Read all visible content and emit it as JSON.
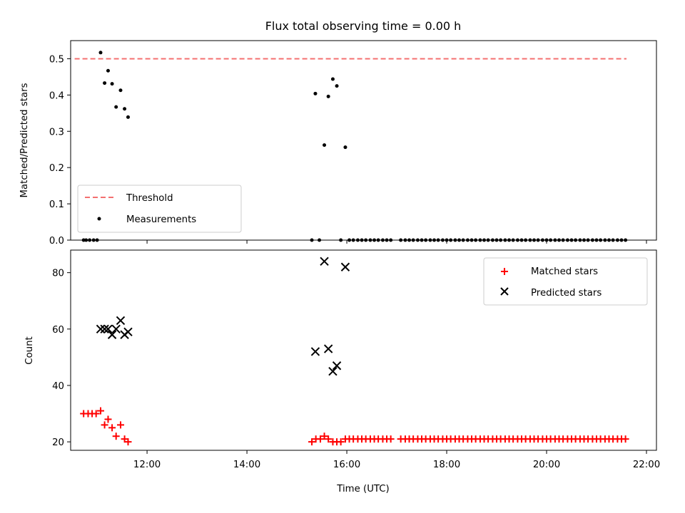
{
  "title": "Flux total observing time = 0.00 h",
  "chart_data": [
    {
      "type": "scatter",
      "ylabel": "Matched/Predicted stars",
      "xlim": [
        10.47,
        22.2
      ],
      "ylim": [
        0.0,
        0.55
      ],
      "ytick_labels": [
        "0.0",
        "0.1",
        "0.2",
        "0.3",
        "0.4",
        "0.5"
      ],
      "yticks": [
        0.0,
        0.1,
        0.2,
        0.3,
        0.4,
        0.5
      ],
      "xticks": [
        12,
        14,
        16,
        18,
        20,
        22
      ],
      "legend": {
        "placement": "lower-left"
      },
      "threshold": {
        "name": "Threshold",
        "value": 0.5,
        "x_range": [
          10.55,
          21.6
        ],
        "color": "#f47070"
      },
      "measurements": {
        "name": "Measurements",
        "color": "#000000",
        "x": [
          10.73,
          10.78,
          10.85,
          10.93,
          11.0,
          11.07,
          11.15,
          11.22,
          11.3,
          11.38,
          11.47,
          11.55,
          11.62,
          15.3,
          15.37,
          15.45,
          15.55,
          15.63,
          15.72,
          15.8,
          15.88,
          15.97,
          16.05,
          16.13,
          16.22,
          16.3,
          16.38,
          16.47,
          16.55,
          16.63,
          16.72,
          16.8,
          16.88,
          17.08,
          17.17,
          17.25,
          17.33,
          17.42,
          17.5,
          17.58,
          17.67,
          17.75,
          17.83,
          17.92,
          18.0,
          18.08,
          18.17,
          18.25,
          18.33,
          18.42,
          18.5,
          18.58,
          18.67,
          18.75,
          18.83,
          18.92,
          19.0,
          19.08,
          19.17,
          19.25,
          19.33,
          19.42,
          19.5,
          19.58,
          19.67,
          19.75,
          19.83,
          19.92,
          20.0,
          20.08,
          20.17,
          20.25,
          20.33,
          20.42,
          20.5,
          20.58,
          20.67,
          20.75,
          20.83,
          20.92,
          21.0,
          21.08,
          21.17,
          21.25,
          21.33,
          21.42,
          21.5,
          21.58
        ],
        "y": [
          0.0,
          0.0,
          0.0,
          0.0,
          0.0,
          0.517,
          0.433,
          0.467,
          0.431,
          0.367,
          0.413,
          0.362,
          0.339,
          0.0,
          0.404,
          0.0,
          0.262,
          0.396,
          0.444,
          0.425,
          0.0,
          0.256,
          0.0,
          0.0,
          0.0,
          0.0,
          0.0,
          0.0,
          0.0,
          0.0,
          0.0,
          0.0,
          0.0,
          0.0,
          0.0,
          0.0,
          0.0,
          0.0,
          0.0,
          0.0,
          0.0,
          0.0,
          0.0,
          0.0,
          0.0,
          0.0,
          0.0,
          0.0,
          0.0,
          0.0,
          0.0,
          0.0,
          0.0,
          0.0,
          0.0,
          0.0,
          0.0,
          0.0,
          0.0,
          0.0,
          0.0,
          0.0,
          0.0,
          0.0,
          0.0,
          0.0,
          0.0,
          0.0,
          0.0,
          0.0,
          0.0,
          0.0,
          0.0,
          0.0,
          0.0,
          0.0,
          0.0,
          0.0,
          0.0,
          0.0,
          0.0,
          0.0,
          0.0,
          0.0,
          0.0,
          0.0,
          0.0,
          0.0
        ]
      }
    },
    {
      "type": "scatter",
      "xlabel": "Time (UTC)",
      "ylabel": "Count",
      "xlim": [
        10.47,
        22.2
      ],
      "ylim": [
        17,
        88
      ],
      "yticks": [
        20,
        40,
        60,
        80
      ],
      "ytick_labels": [
        "20",
        "40",
        "60",
        "80"
      ],
      "xticks": [
        12,
        14,
        16,
        18,
        20,
        22
      ],
      "xtick_labels": [
        "12:00",
        "14:00",
        "16:00",
        "18:00",
        "20:00",
        "22:00"
      ],
      "legend": {
        "placement": "upper-right"
      },
      "series": [
        {
          "name": "Matched stars",
          "marker": "+",
          "color": "#ff0000",
          "x": [
            10.73,
            10.82,
            10.9,
            10.98,
            11.07,
            11.15,
            11.22,
            11.3,
            11.38,
            11.47,
            11.55,
            11.62,
            15.3,
            15.38,
            15.47,
            15.55,
            15.63,
            15.72,
            15.8,
            15.88,
            15.97,
            16.05,
            16.13,
            16.22,
            16.3,
            16.38,
            16.47,
            16.55,
            16.63,
            16.72,
            16.8,
            16.88,
            17.08,
            17.17,
            17.25,
            17.33,
            17.42,
            17.5,
            17.58,
            17.67,
            17.75,
            17.83,
            17.92,
            18.0,
            18.08,
            18.17,
            18.25,
            18.33,
            18.42,
            18.5,
            18.58,
            18.67,
            18.75,
            18.83,
            18.92,
            19.0,
            19.08,
            19.17,
            19.25,
            19.33,
            19.42,
            19.5,
            19.58,
            19.67,
            19.75,
            19.83,
            19.92,
            20.0,
            20.08,
            20.17,
            20.25,
            20.33,
            20.42,
            20.5,
            20.58,
            20.67,
            20.75,
            20.83,
            20.92,
            21.0,
            21.08,
            21.17,
            21.25,
            21.33,
            21.42,
            21.5,
            21.58
          ],
          "y": [
            30,
            30,
            30,
            30,
            31,
            26,
            28,
            25,
            22,
            26,
            21,
            20,
            20,
            21,
            21,
            22,
            21,
            20,
            20,
            20,
            21,
            21,
            21,
            21,
            21,
            21,
            21,
            21,
            21,
            21,
            21,
            21,
            21,
            21,
            21,
            21,
            21,
            21,
            21,
            21,
            21,
            21,
            21,
            21,
            21,
            21,
            21,
            21,
            21,
            21,
            21,
            21,
            21,
            21,
            21,
            21,
            21,
            21,
            21,
            21,
            21,
            21,
            21,
            21,
            21,
            21,
            21,
            21,
            21,
            21,
            21,
            21,
            21,
            21,
            21,
            21,
            21,
            21,
            21,
            21,
            21,
            21,
            21,
            21,
            21,
            21,
            21
          ]
        },
        {
          "name": "Predicted stars",
          "marker": "x",
          "color": "#000000",
          "x": [
            11.07,
            11.15,
            11.22,
            11.3,
            11.38,
            11.47,
            11.55,
            11.62,
            15.37,
            15.55,
            15.63,
            15.72,
            15.8,
            15.97
          ],
          "y": [
            60,
            60,
            60,
            58,
            60,
            63,
            58,
            59,
            52,
            84,
            53,
            45,
            47,
            82
          ]
        }
      ]
    }
  ]
}
